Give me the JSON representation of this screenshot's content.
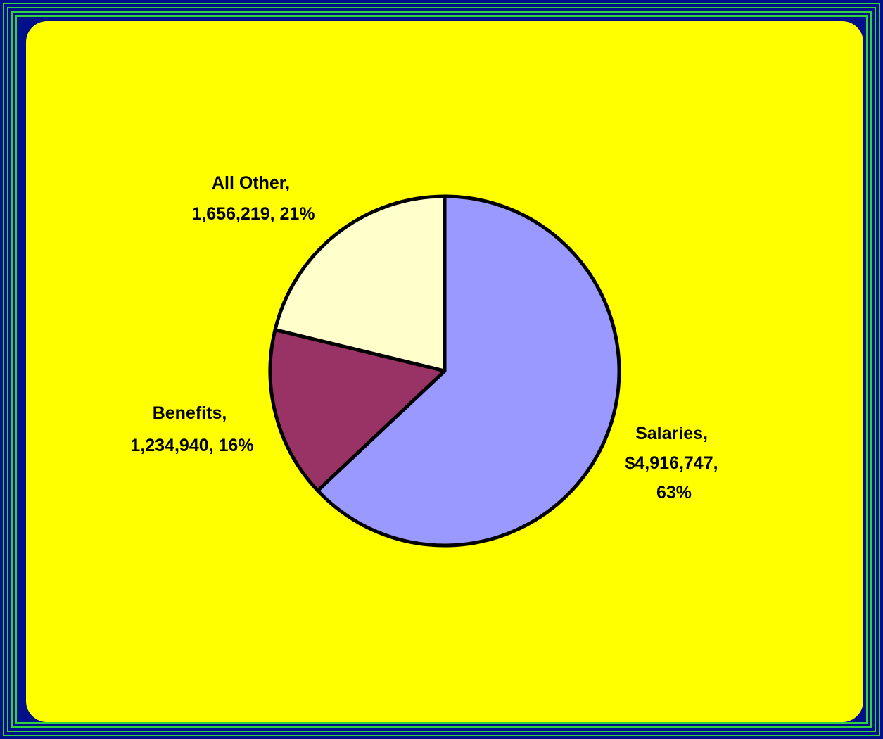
{
  "colors": {
    "background": "#00108a",
    "frame_lines": "#2fd43a",
    "panel": "#ffff00",
    "outline": "#000000"
  },
  "chart_data": {
    "type": "pie",
    "title": "",
    "slices": [
      {
        "name": "Salaries",
        "value": 4916747,
        "percent": 63,
        "color": "#9999ff",
        "label_lines": [
          "Salaries,",
          "$4,916,747,",
          "63%"
        ]
      },
      {
        "name": "Benefits",
        "value": 1234940,
        "percent": 16,
        "color": "#993366",
        "label_lines": [
          "Benefits,",
          "1,234,940, 16%"
        ]
      },
      {
        "name": "All Other",
        "value": 1656219,
        "percent": 21,
        "color": "#ffffcc",
        "label_lines": [
          "All Other,",
          "1,656,219, 21%"
        ]
      }
    ]
  }
}
